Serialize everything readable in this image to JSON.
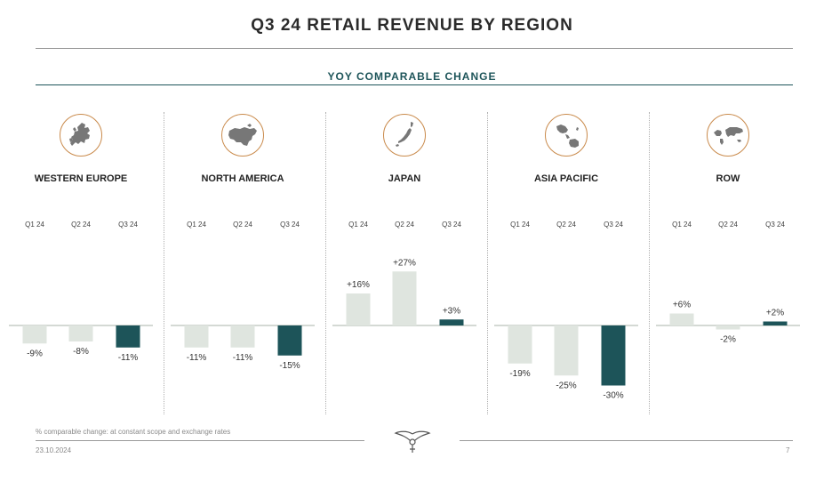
{
  "title": "Q3 24 RETAIL REVENUE BY REGION",
  "subtitle": "YOY COMPARABLE CHANGE",
  "footnote": "% comparable change: at constant scope and exchange rates",
  "date": "23.10.2024",
  "page_number": "7",
  "colors": {
    "past_quarter_bar": "#dfe5df",
    "current_quarter_bar": "#1d5459",
    "icon_ring": "#c98a4b",
    "map_fill": "#777777"
  },
  "regions": [
    {
      "name": "WESTERN EUROPE",
      "icon": "europe-map-icon"
    },
    {
      "name": "NORTH AMERICA",
      "icon": "north-america-map-icon"
    },
    {
      "name": "JAPAN",
      "icon": "japan-map-icon"
    },
    {
      "name": "ASIA PACIFIC",
      "icon": "asia-pacific-map-icon"
    },
    {
      "name": "ROW",
      "icon": "world-map-icon"
    }
  ],
  "chart_data": [
    {
      "type": "bar",
      "title": "WESTERN EUROPE",
      "categories": [
        "Q1 24",
        "Q2 24",
        "Q3 24"
      ],
      "values": [
        -9,
        -8,
        -11
      ],
      "labels": [
        "-9%",
        "-8%",
        "-11%"
      ],
      "ylim": [
        -30,
        27
      ]
    },
    {
      "type": "bar",
      "title": "NORTH AMERICA",
      "categories": [
        "Q1 24",
        "Q2 24",
        "Q3 24"
      ],
      "values": [
        -11,
        -11,
        -15
      ],
      "labels": [
        "-11%",
        "-11%",
        "-15%"
      ],
      "ylim": [
        -30,
        27
      ]
    },
    {
      "type": "bar",
      "title": "JAPAN",
      "categories": [
        "Q1 24",
        "Q2 24",
        "Q3 24"
      ],
      "values": [
        16,
        27,
        3
      ],
      "labels": [
        "+16%",
        "+27%",
        "+3%"
      ],
      "ylim": [
        -30,
        27
      ]
    },
    {
      "type": "bar",
      "title": "ASIA PACIFIC",
      "categories": [
        "Q1 24",
        "Q2 24",
        "Q3 24"
      ],
      "values": [
        -19,
        -25,
        -30
      ],
      "labels": [
        "-19%",
        "-25%",
        "-30%"
      ],
      "ylim": [
        -30,
        27
      ]
    },
    {
      "type": "bar",
      "title": "ROW",
      "categories": [
        "Q1 24",
        "Q2 24",
        "Q3 24"
      ],
      "values": [
        6,
        -2,
        2
      ],
      "labels": [
        "+6%",
        "-2%",
        "+2%"
      ],
      "ylim": [
        -30,
        27
      ]
    }
  ]
}
